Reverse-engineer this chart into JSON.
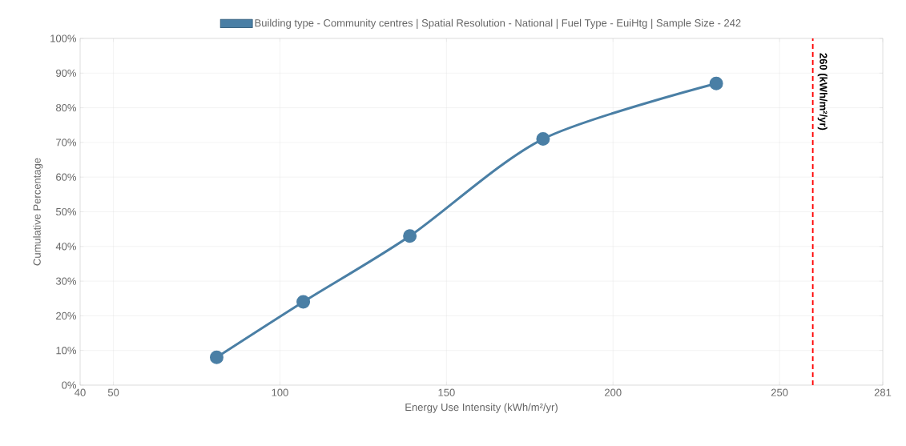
{
  "chart_data": {
    "type": "line",
    "xlabel": "Energy Use Intensity (kWh/m²/yr)",
    "ylabel": "Cumulative Percentage",
    "x": [
      81,
      107,
      139,
      179,
      231
    ],
    "series": [
      {
        "name": "Building type - Community centres | Spatial Resolution - National | Fuel Type - EuiHtg | Sample Size - 242",
        "color": "#4a7fa5",
        "values": [
          8,
          24,
          43,
          71,
          87
        ]
      }
    ],
    "xlim": [
      40,
      281
    ],
    "xticks": [
      40,
      50,
      100,
      150,
      200,
      250,
      281
    ],
    "ylim": [
      0,
      100
    ],
    "yticks": [
      {
        "value": 0,
        "label": "0%"
      },
      {
        "value": 10,
        "label": "10%"
      },
      {
        "value": 20,
        "label": "20%"
      },
      {
        "value": 30,
        "label": "30%"
      },
      {
        "value": 40,
        "label": "40%"
      },
      {
        "value": 50,
        "label": "50%"
      },
      {
        "value": 60,
        "label": "60%"
      },
      {
        "value": 70,
        "label": "70%"
      },
      {
        "value": 80,
        "label": "80%"
      },
      {
        "value": 90,
        "label": "90%"
      },
      {
        "value": 100,
        "label": "100%"
      }
    ],
    "grid": true,
    "legend": "top",
    "marker": "circle",
    "ref_lines": [
      {
        "axis": "x",
        "value": 260,
        "label": "260 (kWh/m²/yr)",
        "color": "#ff0000",
        "line_style": "dashed"
      }
    ]
  }
}
